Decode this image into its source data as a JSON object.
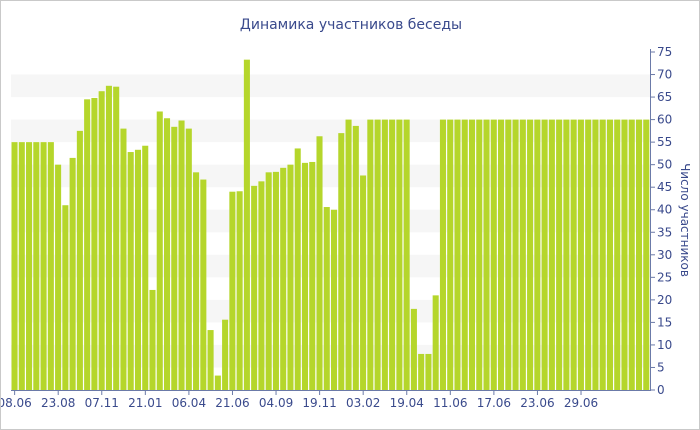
{
  "chart_data": {
    "type": "bar",
    "title": "Динамика участников беседы",
    "xlabel": "",
    "ylabel": "Число участников",
    "ylim": [
      0,
      75
    ],
    "yticks": [
      0,
      5,
      10,
      15,
      20,
      25,
      30,
      35,
      40,
      45,
      50,
      55,
      60,
      65,
      70,
      75
    ],
    "y_axis_side": "right",
    "grid": "alternating horizontal bands",
    "legend": "none",
    "bar_color": "#b5d62b",
    "band_color": "#f6f6f6",
    "text_color": "#3a4a8c",
    "x_tick_labels": [
      "08.06",
      "23.08",
      "07.11",
      "21.01",
      "06.04",
      "21.06",
      "04.09",
      "19.11",
      "03.02",
      "19.04",
      "11.06",
      "17.06",
      "23.06",
      "29.06"
    ],
    "series": [
      {
        "values": [
          55,
          55,
          55,
          55,
          55,
          55,
          50,
          41,
          51.5,
          57.5,
          64.5,
          64.8,
          66.3,
          67.5,
          67.3,
          58,
          52.8,
          53.3,
          54.2,
          22.2,
          61.8,
          60.3,
          58.4,
          59.8,
          58,
          48.3,
          46.7,
          13.3,
          3.2,
          15.6,
          44,
          44.1,
          73.3,
          45.3,
          46.3,
          48.3,
          48.4,
          49.3,
          50,
          53.6,
          50.4,
          50.6,
          56.3,
          40.6,
          40,
          57,
          60,
          58.6,
          47.6,
          60,
          60,
          60,
          60,
          60,
          60,
          18,
          8,
          8,
          21,
          60,
          60,
          60,
          60,
          60,
          60,
          60,
          60,
          60,
          60,
          60,
          60,
          60,
          60,
          60,
          60,
          60,
          60,
          60,
          60,
          60,
          60,
          60,
          60,
          60,
          60,
          60,
          60,
          60
        ]
      }
    ]
  }
}
